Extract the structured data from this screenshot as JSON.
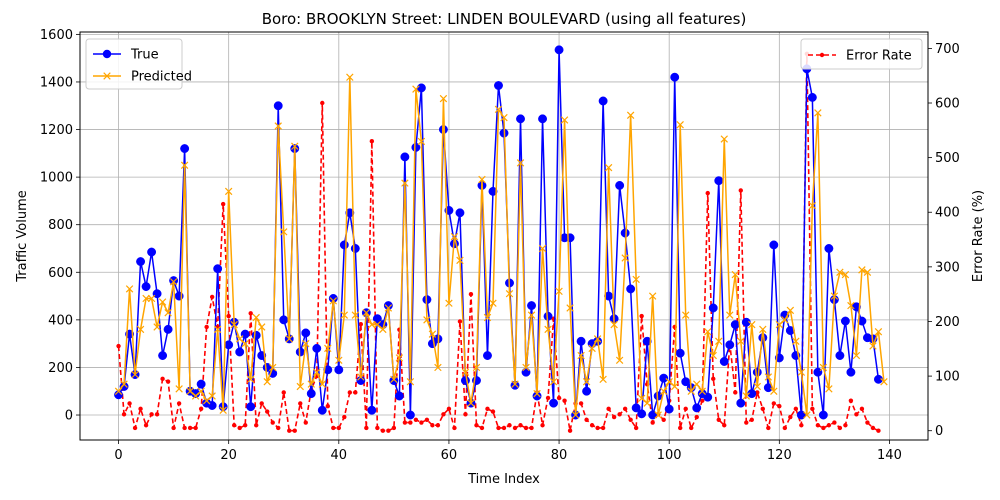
{
  "chart_data": {
    "type": "line",
    "title": "Boro: BROOKLYN Street: LINDEN BOULEVARD (using all features)",
    "xlabel": "Time Index",
    "ylabel": "Traffic Volume",
    "y2label": "Error Rate (%)",
    "xlim": [
      -7,
      147
    ],
    "ylim": [
      -105,
      1610
    ],
    "y2lim": [
      -17,
      730
    ],
    "xticks": [
      0,
      20,
      40,
      60,
      80,
      100,
      120,
      140
    ],
    "yticks": [
      0,
      200,
      400,
      600,
      800,
      1000,
      1200,
      1400,
      1600
    ],
    "y2ticks": [
      0,
      100,
      200,
      300,
      400,
      500,
      600,
      700
    ],
    "grid": true,
    "legend_left": "upper-left",
    "legend_right": "upper-right",
    "series": [
      {
        "name": "True",
        "axis": "left",
        "color": "#0000ff",
        "marker": "circle",
        "values": [
          85,
          120,
          340,
          170,
          645,
          540,
          685,
          510,
          250,
          360,
          565,
          500,
          1120,
          100,
          90,
          130,
          50,
          40,
          615,
          35,
          295,
          390,
          265,
          340,
          35,
          335,
          250,
          200,
          175,
          1300,
          400,
          320,
          1120,
          265,
          345,
          90,
          280,
          20,
          190,
          490,
          190,
          715,
          850,
          700,
          145,
          430,
          20,
          405,
          380,
          460,
          145,
          80,
          1085,
          0,
          1125,
          1375,
          485,
          300,
          320,
          1200,
          860,
          720,
          850,
          145,
          50,
          145,
          965,
          250,
          940,
          1385,
          1185,
          555,
          125,
          1245,
          180,
          460,
          80,
          1245,
          415,
          50,
          1535,
          745,
          745,
          0,
          310,
          100,
          300,
          310,
          1320,
          500,
          405,
          965,
          765,
          530,
          30,
          5,
          310,
          0,
          80,
          155,
          25,
          1420,
          260,
          140,
          115,
          30,
          90,
          75,
          450,
          985,
          225,
          295,
          380,
          50,
          390,
          90,
          180,
          325,
          115,
          715,
          240,
          420,
          355,
          250,
          0,
          1455,
          1335,
          180,
          0,
          700,
          485,
          250,
          395,
          180,
          455,
          395,
          325,
          320,
          150
        ]
      },
      {
        "name": "Predicted",
        "axis": "left",
        "color": "#ffa500",
        "marker": "x",
        "values": [
          100,
          130,
          530,
          170,
          360,
          490,
          490,
          370,
          475,
          430,
          560,
          110,
          1050,
          100,
          80,
          100,
          60,
          80,
          360,
          20,
          940,
          380,
          320,
          300,
          150,
          410,
          370,
          140,
          200,
          1215,
          770,
          320,
          1130,
          120,
          300,
          130,
          180,
          130,
          280,
          480,
          230,
          420,
          1420,
          420,
          160,
          430,
          380,
          380,
          360,
          450,
          150,
          240,
          975,
          140,
          1370,
          1150,
          400,
          340,
          200,
          1330,
          470,
          750,
          650,
          180,
          50,
          200,
          990,
          410,
          470,
          1285,
          1250,
          510,
          130,
          1060,
          200,
          420,
          90,
          700,
          360,
          140,
          520,
          1240,
          450,
          0,
          250,
          140,
          280,
          320,
          150,
          1040,
          380,
          230,
          660,
          1260,
          570,
          70,
          50,
          500,
          0,
          100,
          140,
          120,
          1220,
          420,
          100,
          130,
          100,
          350,
          250,
          310,
          1160,
          420,
          590,
          310,
          80,
          380,
          120,
          360,
          160,
          100,
          380,
          400,
          440,
          310,
          180,
          0,
          880,
          1270,
          200,
          110,
          500,
          600,
          590,
          460,
          250,
          610,
          600,
          290,
          350,
          140
        ]
      },
      {
        "name": "Error Rate",
        "axis": "right",
        "color": "#ff0000",
        "style": "dashed",
        "marker": "dot",
        "values": [
          155,
          30,
          50,
          5,
          40,
          10,
          30,
          30,
          95,
          90,
          5,
          50,
          5,
          5,
          5,
          40,
          190,
          245,
          190,
          415,
          210,
          10,
          5,
          10,
          215,
          10,
          50,
          35,
          15,
          5,
          70,
          0,
          0,
          50,
          15,
          75,
          100,
          600,
          45,
          5,
          5,
          25,
          70,
          70,
          195,
          5,
          530,
          5,
          0,
          0,
          5,
          185,
          15,
          15,
          20,
          15,
          20,
          10,
          10,
          30,
          40,
          5,
          200,
          30,
          250,
          10,
          5,
          40,
          35,
          5,
          5,
          10,
          5,
          10,
          5,
          5,
          70,
          10,
          60,
          205,
          60,
          55,
          0,
          50,
          50,
          20,
          10,
          5,
          5,
          40,
          25,
          30,
          40,
          20,
          5,
          210,
          85,
          15,
          30,
          20,
          55,
          190,
          5,
          40,
          5,
          25,
          55,
          435,
          95,
          20,
          10,
          160,
          70,
          440,
          15,
          20,
          70,
          40,
          5,
          50,
          45,
          5,
          25,
          40,
          10,
          690,
          40,
          10,
          5,
          10,
          15,
          5,
          10,
          55,
          30,
          40,
          15,
          5,
          0
        ]
      }
    ]
  }
}
